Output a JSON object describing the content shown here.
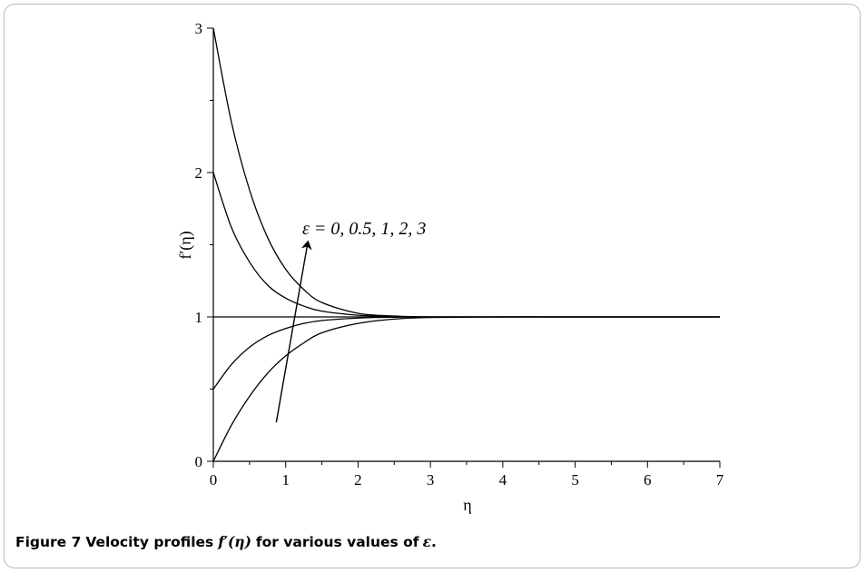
{
  "figure": {
    "number": "Figure 7",
    "caption_before": "Velocity profiles",
    "caption_math": "f′(η)",
    "caption_middle": "for various values of",
    "caption_symbol": "ε",
    "caption_end": "."
  },
  "chart_data": {
    "type": "line",
    "title": "",
    "xlabel": "η",
    "ylabel": "f′(η)",
    "xlim": [
      0,
      7
    ],
    "ylim": [
      0,
      3
    ],
    "x_ticks": [
      0,
      1,
      2,
      3,
      4,
      5,
      6,
      7
    ],
    "y_ticks": [
      0,
      1,
      2,
      3
    ],
    "grid": false,
    "legend": "none",
    "annotation": {
      "text": "ε = 0, 0.5, 1, 2, 3",
      "arrow_from": [
        0.87,
        0.27
      ],
      "arrow_to": [
        1.3,
        1.5
      ]
    },
    "series": [
      {
        "x": [
          0,
          0.25,
          0.5,
          0.75,
          1,
          1.25,
          1.5,
          2,
          2.5,
          3,
          4,
          5,
          6,
          7
        ],
        "y": [
          0.0,
          0.25,
          0.45,
          0.61,
          0.73,
          0.82,
          0.89,
          0.955,
          0.985,
          0.996,
          1.0,
          1.0,
          1.0,
          1.0
        ]
      },
      {
        "x": [
          0,
          0.25,
          0.5,
          0.75,
          1,
          1.25,
          1.5,
          2,
          2.5,
          3,
          4,
          5,
          6,
          7
        ],
        "y": [
          0.5,
          0.67,
          0.79,
          0.87,
          0.92,
          0.955,
          0.975,
          0.992,
          0.998,
          1.0,
          1.0,
          1.0,
          1.0,
          1.0
        ]
      },
      {
        "x": [
          0,
          7
        ],
        "y": [
          1.0,
          1.0
        ]
      },
      {
        "x": [
          0,
          0.25,
          0.5,
          0.75,
          1,
          1.25,
          1.5,
          2,
          2.5,
          3,
          4,
          5,
          6,
          7
        ],
        "y": [
          2.0,
          1.62,
          1.38,
          1.22,
          1.13,
          1.075,
          1.04,
          1.012,
          1.003,
          1.0,
          1.0,
          1.0,
          1.0,
          1.0
        ]
      },
      {
        "x": [
          0,
          0.25,
          0.5,
          0.75,
          1,
          1.25,
          1.5,
          2,
          2.5,
          3,
          4,
          5,
          6,
          7
        ],
        "y": [
          3.0,
          2.35,
          1.88,
          1.55,
          1.33,
          1.19,
          1.1,
          1.025,
          1.006,
          1.0,
          1.0,
          1.0,
          1.0,
          1.0
        ]
      }
    ]
  }
}
